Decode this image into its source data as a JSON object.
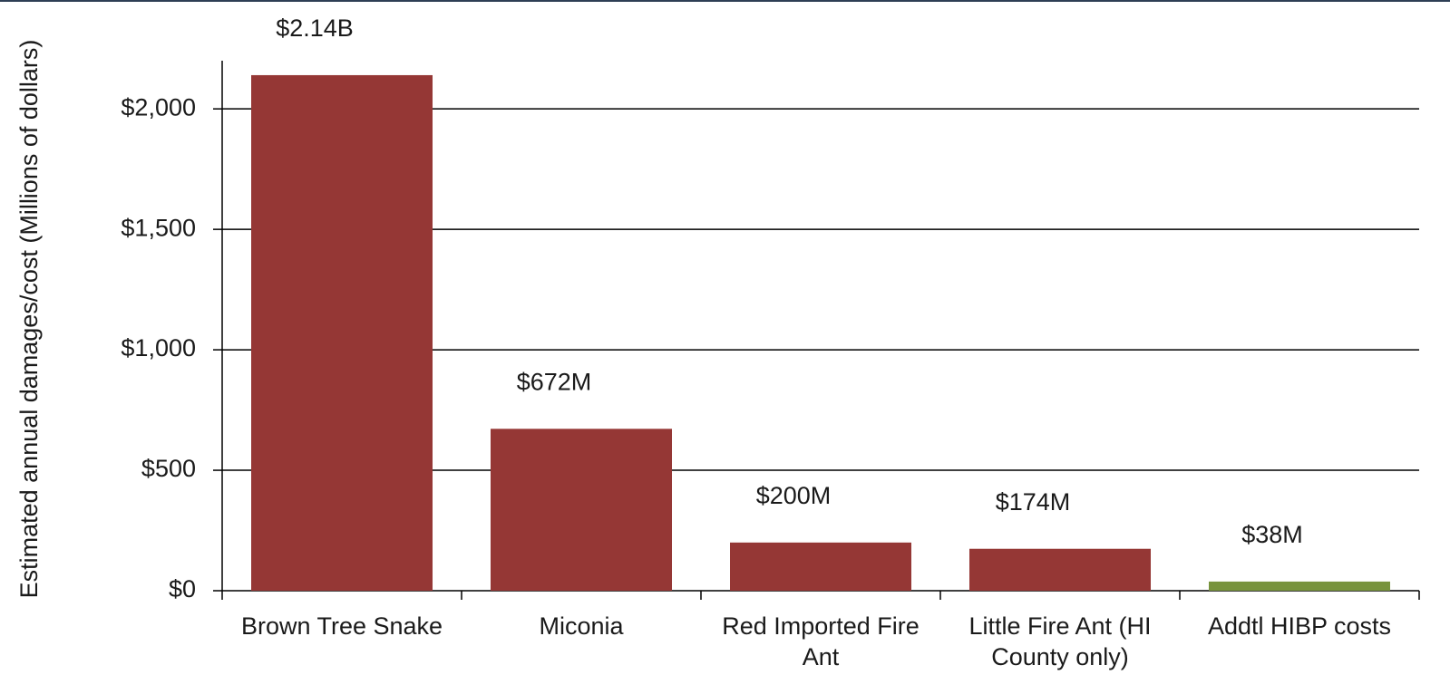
{
  "chart_data": {
    "type": "bar",
    "y_label": "Estimated annual damages/cost (Millions of dollars)",
    "categories": [
      "Brown Tree Snake",
      "Miconia",
      "Red Imported Fire Ant",
      "Little Fire Ant (HI County only)",
      "Addtl HIBP costs"
    ],
    "values": [
      2140,
      672,
      200,
      174,
      38
    ],
    "value_labels": [
      "$2.14B",
      "$672M",
      "$200M",
      "$174M",
      "$38M"
    ],
    "colors": [
      "#953735",
      "#953735",
      "#953735",
      "#953735",
      "#77933c"
    ],
    "ylim": [
      0,
      2200
    ],
    "yticks": [
      {
        "value": 0,
        "label": "$0"
      },
      {
        "value": 500,
        "label": "$500"
      },
      {
        "value": 1000,
        "label": "$1,000"
      },
      {
        "value": 1500,
        "label": "$1,500"
      },
      {
        "value": 2000,
        "label": "$2,000"
      }
    ],
    "grid": true
  }
}
